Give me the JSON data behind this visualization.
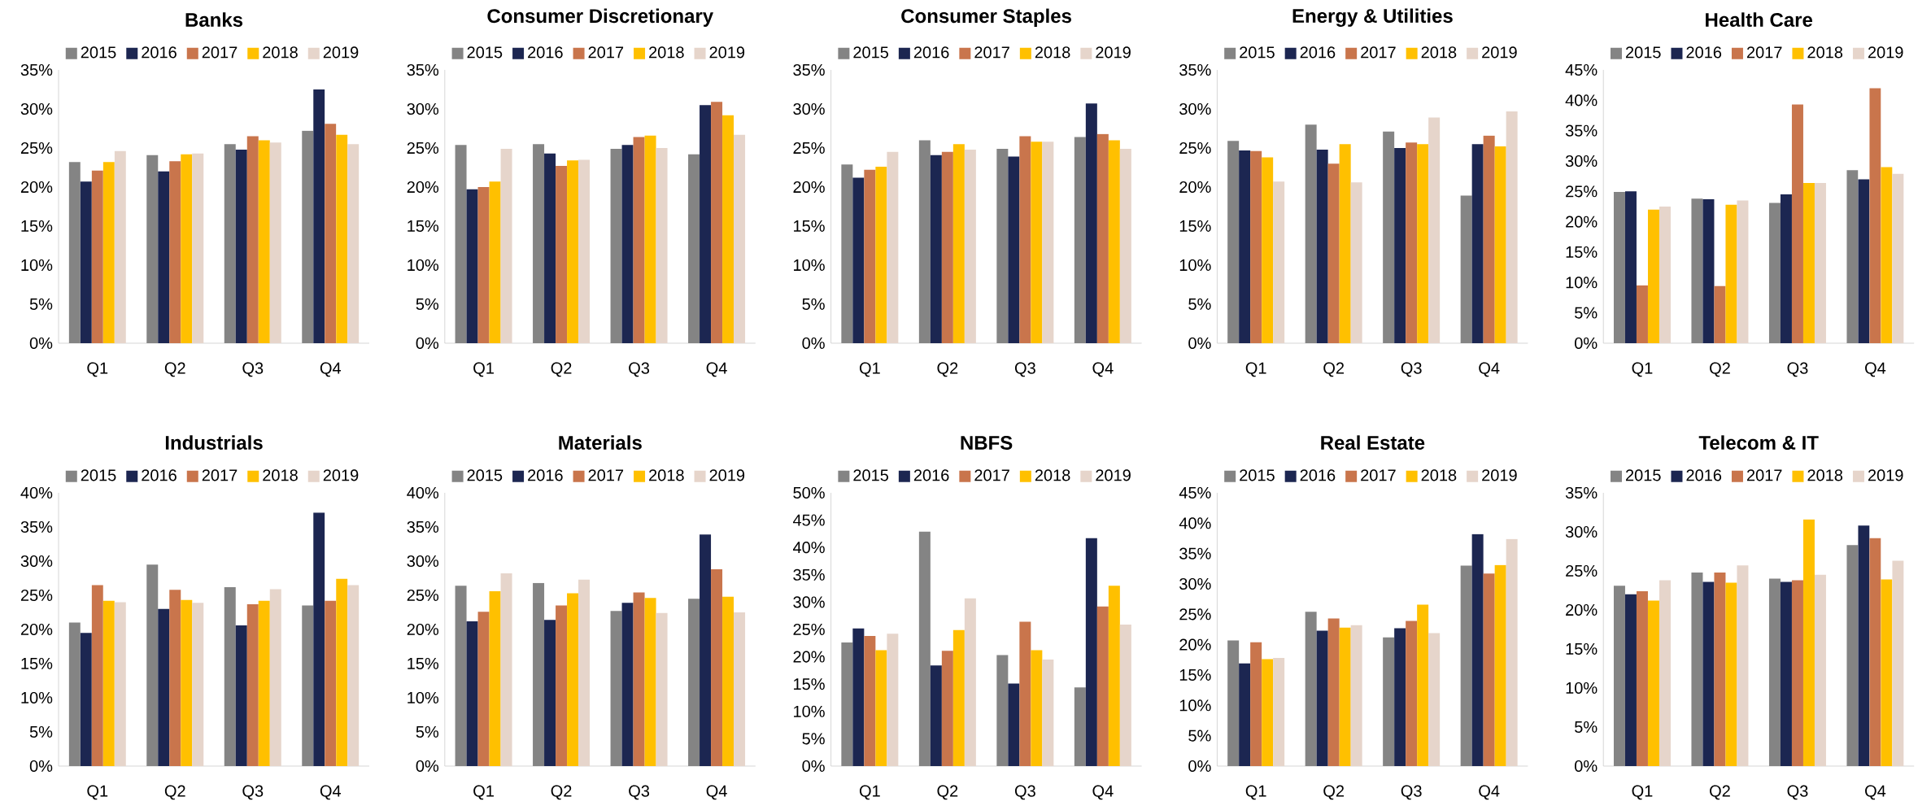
{
  "chart_data": [
    {
      "type": "bar",
      "title": "Banks",
      "categories": [
        "Q1",
        "Q2",
        "Q3",
        "Q4"
      ],
      "ylim": [
        0,
        35
      ],
      "yticks": [
        {
          "value": 0,
          "label": "0%"
        },
        {
          "value": 5,
          "label": "5%"
        },
        {
          "value": 10,
          "label": "10%"
        },
        {
          "value": 15,
          "label": "15%"
        },
        {
          "value": 20,
          "label": "20%"
        },
        {
          "value": 25,
          "label": "25%"
        },
        {
          "value": 30,
          "label": "30%"
        },
        {
          "value": 35,
          "label": "35%"
        }
      ],
      "legend": "top",
      "series": [
        {
          "name": "2015",
          "color": "#848484",
          "values": [
            23.2,
            24.1,
            25.5,
            27.2
          ]
        },
        {
          "name": "2016",
          "color": "#1c2651",
          "values": [
            20.7,
            22.0,
            24.8,
            32.5
          ]
        },
        {
          "name": "2017",
          "color": "#c9754c",
          "values": [
            22.1,
            23.3,
            26.5,
            28.1
          ]
        },
        {
          "name": "2018",
          "color": "#ffc000",
          "values": [
            23.2,
            24.2,
            26.0,
            26.7
          ]
        },
        {
          "name": "2019",
          "color": "#e6d5cb",
          "values": [
            24.6,
            24.3,
            25.7,
            25.5
          ]
        }
      ]
    },
    {
      "type": "bar",
      "title": "Consumer Discretionary",
      "categories": [
        "Q1",
        "Q2",
        "Q3",
        "Q4"
      ],
      "ylim": [
        0,
        35
      ],
      "yticks": [
        {
          "value": 0,
          "label": "0%"
        },
        {
          "value": 5,
          "label": "5%"
        },
        {
          "value": 10,
          "label": "10%"
        },
        {
          "value": 15,
          "label": "15%"
        },
        {
          "value": 20,
          "label": "20%"
        },
        {
          "value": 25,
          "label": "25%"
        },
        {
          "value": 30,
          "label": "30%"
        },
        {
          "value": 35,
          "label": "35%"
        }
      ],
      "legend": "top",
      "series": [
        {
          "name": "2015",
          "color": "#848484",
          "values": [
            25.4,
            25.5,
            24.9,
            24.2
          ]
        },
        {
          "name": "2016",
          "color": "#1c2651",
          "values": [
            19.7,
            24.3,
            25.4,
            30.5
          ]
        },
        {
          "name": "2017",
          "color": "#c9754c",
          "values": [
            20.0,
            22.7,
            26.4,
            30.9
          ]
        },
        {
          "name": "2018",
          "color": "#ffc000",
          "values": [
            20.7,
            23.4,
            26.6,
            29.2
          ]
        },
        {
          "name": "2019",
          "color": "#e6d5cb",
          "values": [
            24.9,
            23.5,
            25.0,
            26.7
          ]
        }
      ]
    },
    {
      "type": "bar",
      "title": "Consumer Staples",
      "categories": [
        "Q1",
        "Q2",
        "Q3",
        "Q4"
      ],
      "ylim": [
        0,
        35
      ],
      "yticks": [
        {
          "value": 0,
          "label": "0%"
        },
        {
          "value": 5,
          "label": "5%"
        },
        {
          "value": 10,
          "label": "10%"
        },
        {
          "value": 15,
          "label": "15%"
        },
        {
          "value": 20,
          "label": "20%"
        },
        {
          "value": 25,
          "label": "25%"
        },
        {
          "value": 30,
          "label": "30%"
        },
        {
          "value": 35,
          "label": "35%"
        }
      ],
      "legend": "top",
      "series": [
        {
          "name": "2015",
          "color": "#848484",
          "values": [
            22.9,
            26.0,
            24.9,
            26.4
          ]
        },
        {
          "name": "2016",
          "color": "#1c2651",
          "values": [
            21.2,
            24.1,
            23.9,
            30.7
          ]
        },
        {
          "name": "2017",
          "color": "#c9754c",
          "values": [
            22.2,
            24.5,
            26.5,
            26.8
          ]
        },
        {
          "name": "2018",
          "color": "#ffc000",
          "values": [
            22.6,
            25.5,
            25.8,
            26.0
          ]
        },
        {
          "name": "2019",
          "color": "#e6d5cb",
          "values": [
            24.5,
            24.8,
            25.8,
            24.9
          ]
        }
      ]
    },
    {
      "type": "bar",
      "title": "Energy & Utilities",
      "categories": [
        "Q1",
        "Q2",
        "Q3",
        "Q4"
      ],
      "ylim": [
        0,
        35
      ],
      "yticks": [
        {
          "value": 0,
          "label": "0%"
        },
        {
          "value": 5,
          "label": "5%"
        },
        {
          "value": 10,
          "label": "10%"
        },
        {
          "value": 15,
          "label": "15%"
        },
        {
          "value": 20,
          "label": "20%"
        },
        {
          "value": 25,
          "label": "25%"
        },
        {
          "value": 30,
          "label": "30%"
        },
        {
          "value": 35,
          "label": "35%"
        }
      ],
      "legend": "top",
      "series": [
        {
          "name": "2015",
          "color": "#848484",
          "values": [
            25.9,
            28.0,
            27.1,
            18.9
          ]
        },
        {
          "name": "2016",
          "color": "#1c2651",
          "values": [
            24.7,
            24.8,
            25.0,
            25.5
          ]
        },
        {
          "name": "2017",
          "color": "#c9754c",
          "values": [
            24.6,
            23.0,
            25.7,
            26.6
          ]
        },
        {
          "name": "2018",
          "color": "#ffc000",
          "values": [
            23.8,
            25.5,
            25.5,
            25.2
          ]
        },
        {
          "name": "2019",
          "color": "#e6d5cb",
          "values": [
            20.7,
            20.6,
            28.9,
            29.7
          ]
        }
      ]
    },
    {
      "type": "bar",
      "title": "Health Care",
      "categories": [
        "Q1",
        "Q2",
        "Q3",
        "Q4"
      ],
      "ylim": [
        0,
        45
      ],
      "yticks": [
        {
          "value": 0,
          "label": "0%"
        },
        {
          "value": 5,
          "label": "5%"
        },
        {
          "value": 10,
          "label": "10%"
        },
        {
          "value": 15,
          "label": "15%"
        },
        {
          "value": 20,
          "label": "20%"
        },
        {
          "value": 25,
          "label": "25%"
        },
        {
          "value": 30,
          "label": "30%"
        },
        {
          "value": 35,
          "label": "35%"
        },
        {
          "value": 40,
          "label": "40%"
        },
        {
          "value": 45,
          "label": "45%"
        }
      ],
      "legend": "top",
      "series": [
        {
          "name": "2015",
          "color": "#848484",
          "values": [
            24.9,
            23.8,
            23.1,
            28.5
          ]
        },
        {
          "name": "2016",
          "color": "#1c2651",
          "values": [
            25.0,
            23.7,
            24.5,
            27.0
          ]
        },
        {
          "name": "2017",
          "color": "#c9754c",
          "values": [
            9.5,
            9.4,
            39.3,
            42.0
          ]
        },
        {
          "name": "2018",
          "color": "#ffc000",
          "values": [
            22.0,
            22.8,
            26.4,
            29.0
          ]
        },
        {
          "name": "2019",
          "color": "#e6d5cb",
          "values": [
            22.5,
            23.5,
            26.4,
            27.9
          ]
        }
      ]
    },
    {
      "type": "bar",
      "title": "Industrials",
      "categories": [
        "Q1",
        "Q2",
        "Q3",
        "Q4"
      ],
      "ylim": [
        0,
        40
      ],
      "yticks": [
        {
          "value": 0,
          "label": "0%"
        },
        {
          "value": 5,
          "label": "5%"
        },
        {
          "value": 10,
          "label": "10%"
        },
        {
          "value": 15,
          "label": "15%"
        },
        {
          "value": 20,
          "label": "20%"
        },
        {
          "value": 25,
          "label": "25%"
        },
        {
          "value": 30,
          "label": "30%"
        },
        {
          "value": 35,
          "label": "35%"
        },
        {
          "value": 40,
          "label": "40%"
        }
      ],
      "legend": "top",
      "series": [
        {
          "name": "2015",
          "color": "#848484",
          "values": [
            21.0,
            29.5,
            26.2,
            23.5
          ]
        },
        {
          "name": "2016",
          "color": "#1c2651",
          "values": [
            19.5,
            23.0,
            20.6,
            37.1
          ]
        },
        {
          "name": "2017",
          "color": "#c9754c",
          "values": [
            26.5,
            25.8,
            23.7,
            24.2
          ]
        },
        {
          "name": "2018",
          "color": "#ffc000",
          "values": [
            24.2,
            24.3,
            24.2,
            27.4
          ]
        },
        {
          "name": "2019",
          "color": "#e6d5cb",
          "values": [
            24.0,
            23.9,
            25.9,
            26.5
          ]
        }
      ]
    },
    {
      "type": "bar",
      "title": "Materials",
      "categories": [
        "Q1",
        "Q2",
        "Q3",
        "Q4"
      ],
      "ylim": [
        0,
        40
      ],
      "yticks": [
        {
          "value": 0,
          "label": "0%"
        },
        {
          "value": 5,
          "label": "5%"
        },
        {
          "value": 10,
          "label": "10%"
        },
        {
          "value": 15,
          "label": "15%"
        },
        {
          "value": 20,
          "label": "20%"
        },
        {
          "value": 25,
          "label": "25%"
        },
        {
          "value": 30,
          "label": "30%"
        },
        {
          "value": 35,
          "label": "35%"
        },
        {
          "value": 40,
          "label": "40%"
        }
      ],
      "legend": "top",
      "series": [
        {
          "name": "2015",
          "color": "#848484",
          "values": [
            26.4,
            26.8,
            22.7,
            24.5
          ]
        },
        {
          "name": "2016",
          "color": "#1c2651",
          "values": [
            21.2,
            21.4,
            23.9,
            33.9
          ]
        },
        {
          "name": "2017",
          "color": "#c9754c",
          "values": [
            22.6,
            23.5,
            25.4,
            28.8
          ]
        },
        {
          "name": "2018",
          "color": "#ffc000",
          "values": [
            25.6,
            25.3,
            24.6,
            24.8
          ]
        },
        {
          "name": "2019",
          "color": "#e6d5cb",
          "values": [
            28.2,
            27.3,
            22.4,
            22.5
          ]
        }
      ]
    },
    {
      "type": "bar",
      "title": "NBFS",
      "categories": [
        "Q1",
        "Q2",
        "Q3",
        "Q4"
      ],
      "ylim": [
        0,
        50
      ],
      "yticks": [
        {
          "value": 0,
          "label": "0%"
        },
        {
          "value": 5,
          "label": "5%"
        },
        {
          "value": 10,
          "label": "10%"
        },
        {
          "value": 15,
          "label": "15%"
        },
        {
          "value": 20,
          "label": "20%"
        },
        {
          "value": 25,
          "label": "25%"
        },
        {
          "value": 30,
          "label": "30%"
        },
        {
          "value": 35,
          "label": "35%"
        },
        {
          "value": 40,
          "label": "40%"
        },
        {
          "value": 45,
          "label": "45%"
        },
        {
          "value": 50,
          "label": "50%"
        }
      ],
      "legend": "top",
      "series": [
        {
          "name": "2015",
          "color": "#848484",
          "values": [
            22.6,
            42.9,
            20.3,
            14.4
          ]
        },
        {
          "name": "2016",
          "color": "#1c2651",
          "values": [
            25.2,
            18.4,
            15.1,
            41.7
          ]
        },
        {
          "name": "2017",
          "color": "#c9754c",
          "values": [
            23.8,
            21.1,
            26.4,
            29.2
          ]
        },
        {
          "name": "2018",
          "color": "#ffc000",
          "values": [
            21.2,
            24.9,
            21.2,
            33.0
          ]
        },
        {
          "name": "2019",
          "color": "#e6d5cb",
          "values": [
            24.2,
            30.7,
            19.5,
            25.9
          ]
        }
      ]
    },
    {
      "type": "bar",
      "title": "Real Estate",
      "categories": [
        "Q1",
        "Q2",
        "Q3",
        "Q4"
      ],
      "ylim": [
        0,
        45
      ],
      "yticks": [
        {
          "value": 0,
          "label": "0%"
        },
        {
          "value": 5,
          "label": "5%"
        },
        {
          "value": 10,
          "label": "10%"
        },
        {
          "value": 15,
          "label": "15%"
        },
        {
          "value": 20,
          "label": "20%"
        },
        {
          "value": 25,
          "label": "25%"
        },
        {
          "value": 30,
          "label": "30%"
        },
        {
          "value": 35,
          "label": "35%"
        },
        {
          "value": 40,
          "label": "40%"
        },
        {
          "value": 45,
          "label": "45%"
        }
      ],
      "legend": "top",
      "series": [
        {
          "name": "2015",
          "color": "#848484",
          "values": [
            20.7,
            25.4,
            21.2,
            33.0
          ]
        },
        {
          "name": "2016",
          "color": "#1c2651",
          "values": [
            16.9,
            22.3,
            22.7,
            38.2
          ]
        },
        {
          "name": "2017",
          "color": "#c9754c",
          "values": [
            20.4,
            24.3,
            23.9,
            31.7
          ]
        },
        {
          "name": "2018",
          "color": "#ffc000",
          "values": [
            17.6,
            22.8,
            26.6,
            33.1
          ]
        },
        {
          "name": "2019",
          "color": "#e6d5cb",
          "values": [
            17.8,
            23.2,
            21.9,
            37.4
          ]
        }
      ]
    },
    {
      "type": "bar",
      "title": "Telecom & IT",
      "categories": [
        "Q1",
        "Q2",
        "Q3",
        "Q4"
      ],
      "ylim": [
        0,
        35
      ],
      "yticks": [
        {
          "value": 0,
          "label": "0%"
        },
        {
          "value": 5,
          "label": "5%"
        },
        {
          "value": 10,
          "label": "10%"
        },
        {
          "value": 15,
          "label": "15%"
        },
        {
          "value": 20,
          "label": "20%"
        },
        {
          "value": 25,
          "label": "25%"
        },
        {
          "value": 30,
          "label": "30%"
        },
        {
          "value": 35,
          "label": "35%"
        }
      ],
      "legend": "top",
      "series": [
        {
          "name": "2015",
          "color": "#848484",
          "values": [
            23.1,
            24.8,
            24.0,
            28.3
          ]
        },
        {
          "name": "2016",
          "color": "#1c2651",
          "values": [
            22.0,
            23.6,
            23.6,
            30.8
          ]
        },
        {
          "name": "2017",
          "color": "#c9754c",
          "values": [
            22.4,
            24.8,
            23.8,
            29.2
          ]
        },
        {
          "name": "2018",
          "color": "#ffc000",
          "values": [
            21.2,
            23.5,
            31.6,
            23.9
          ]
        },
        {
          "name": "2019",
          "color": "#e6d5cb",
          "values": [
            23.8,
            25.7,
            24.5,
            26.3
          ]
        }
      ]
    }
  ]
}
